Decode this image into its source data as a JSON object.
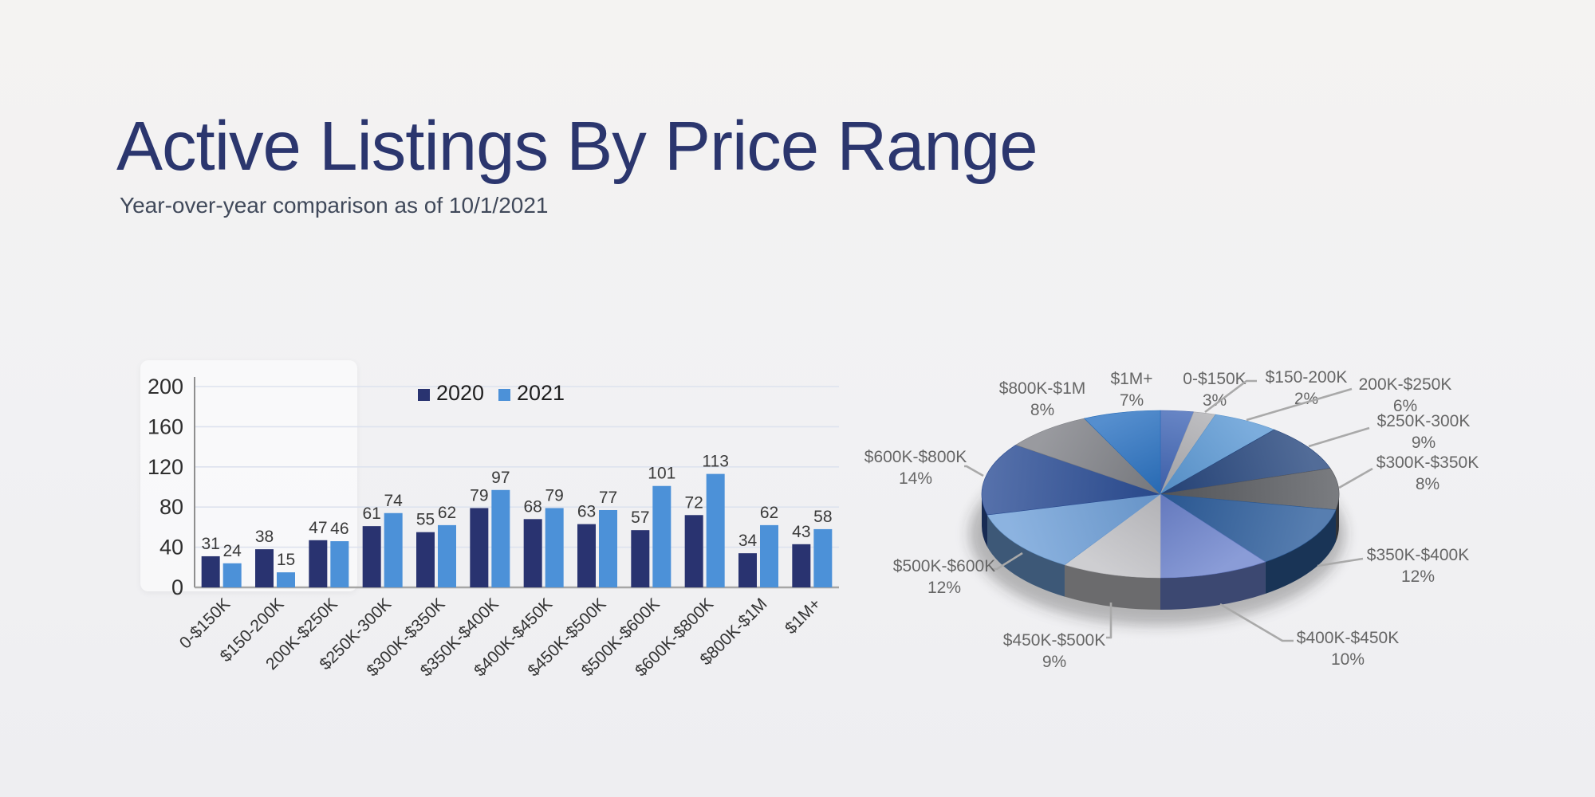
{
  "slide": {
    "title": "Active Listings By Price Range",
    "subtitle": "Year-over-year comparison as of 10/1/2021"
  },
  "chart_data": [
    {
      "type": "bar",
      "name": "active-listings-by-price-bar",
      "categories": [
        "0-$150K",
        "$150-200K",
        "200K-$250K",
        "$250K-300K",
        "$300K-$350K",
        "$350K-$400K",
        "$400K-$450K",
        "$450K-$500K",
        "$500K-$600K",
        "$600K-$800K",
        "$800K-$1M",
        "$1M+"
      ],
      "series": [
        {
          "name": "2020",
          "color": "#293370",
          "values": [
            31,
            38,
            47,
            61,
            55,
            79,
            68,
            63,
            57,
            72,
            34,
            43
          ]
        },
        {
          "name": "2021",
          "color": "#4c91d8",
          "values": [
            24,
            15,
            46,
            74,
            62,
            97,
            79,
            77,
            101,
            113,
            62,
            58
          ]
        }
      ],
      "ylim": [
        0,
        200
      ],
      "yticks": [
        0,
        40,
        80,
        120,
        160,
        200
      ],
      "grid": true,
      "legend_position": "top-center",
      "value_labels": true,
      "x_label_rotation_deg": -45
    },
    {
      "type": "pie",
      "name": "active-listings-by-price-pie",
      "unit": "%",
      "style": "3d",
      "start_angle_deg": 0,
      "direction": "clockwise",
      "slices": [
        {
          "label": "0-$150K",
          "value": 3,
          "color": "#4166b6"
        },
        {
          "label": "$150-200K",
          "value": 2,
          "color": "#aeaeb2"
        },
        {
          "label": "200K-$250K",
          "value": 6,
          "color": "#5b99d5"
        },
        {
          "label": "$250K-300K",
          "value": 9,
          "color": "#27477e"
        },
        {
          "label": "$300K-$350K",
          "value": 8,
          "color": "#595b60"
        },
        {
          "label": "$350K-$400K",
          "value": 12,
          "color": "#2d5e9c"
        },
        {
          "label": "$400K-$450K",
          "value": 10,
          "color": "#6d83cd"
        },
        {
          "label": "$450K-$500K",
          "value": 9,
          "color": "#c2c2c6"
        },
        {
          "label": "$500K-$600K",
          "value": 12,
          "color": "#6fa0d8"
        },
        {
          "label": "$600K-$800K",
          "value": 14,
          "color": "#2c4e96"
        },
        {
          "label": "$800K-$1M",
          "value": 8,
          "color": "#7f8187"
        },
        {
          "label": "$1M+",
          "value": 7,
          "color": "#2a72c2"
        }
      ]
    }
  ],
  "colors": {
    "background": "#f1f1f3",
    "title": "#2b366e",
    "subtitle": "#40495a",
    "gridline": "#dde2ee",
    "axis_line": "#8f8f8f",
    "baseline": "#a6a6a6",
    "tick_text": "#2f2f2f",
    "value_label": "#3a3a3a",
    "legend_text": "#1f1f1f",
    "pie_label": "#666666",
    "leader_line": "#a9a9a9"
  }
}
